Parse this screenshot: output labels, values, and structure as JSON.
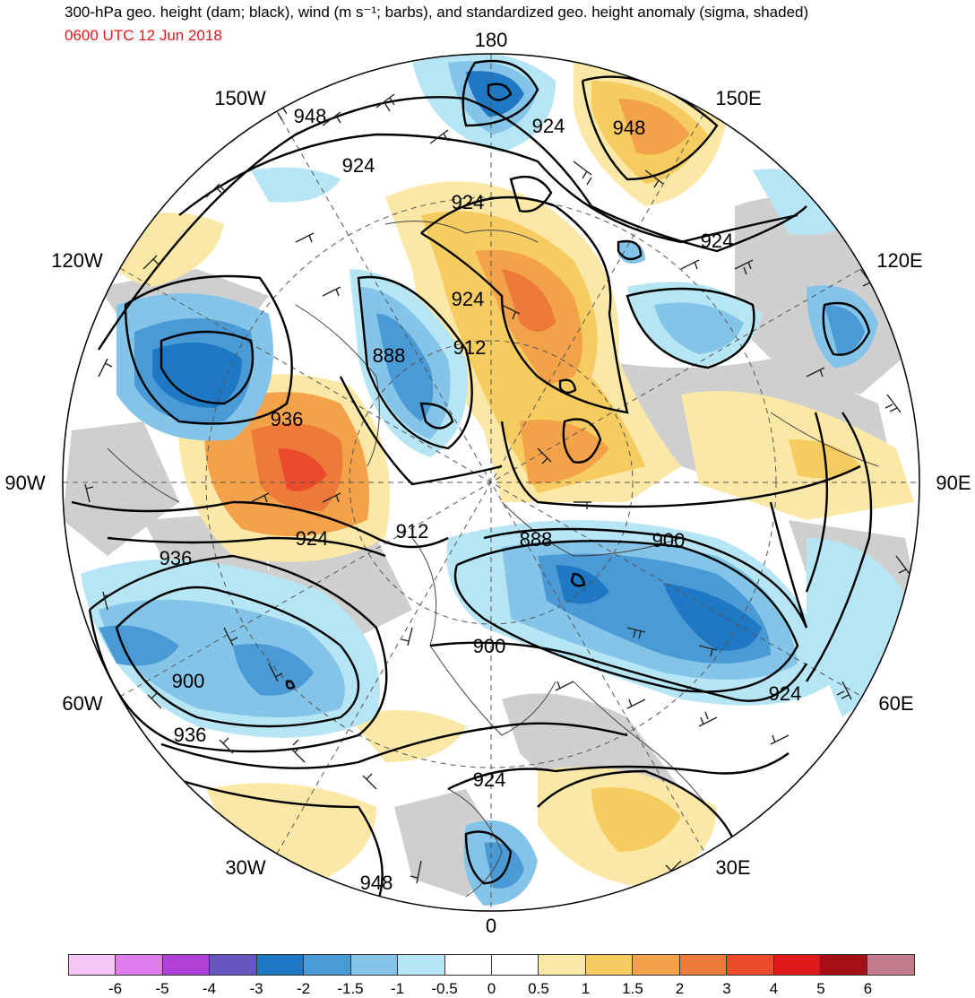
{
  "header": {
    "title": "300-hPa geo. height (dam; black), wind (m s⁻¹; barbs), and standardized geo. height anomaly (sigma, shaded)",
    "subtitle": "0600 UTC 12 Jun 2018"
  },
  "longitude_labels": {
    "n180": "180",
    "e150": "150E",
    "e120": "120E",
    "e90": "90E",
    "e60": "60E",
    "e30": "30E",
    "s0": "0",
    "w30": "30W",
    "w60": "60W",
    "w90": "90W",
    "w120": "120W",
    "w150": "150W"
  },
  "contour_labels": {
    "c948a": "948",
    "c924a": "924",
    "c924b": "924",
    "c948b": "948",
    "c924c": "924",
    "c924d": "924",
    "c912a": "912",
    "c888a": "888",
    "c936a": "936",
    "c936b": "936",
    "c924e": "924",
    "c912b": "912",
    "c888b": "888",
    "c900a": "900",
    "c900b": "900",
    "c924f": "924",
    "c900c": "900",
    "c936c": "936",
    "c924g": "924",
    "c948c": "948"
  },
  "colorbar": {
    "ticks": [
      "-6",
      "-5",
      "-4",
      "-3",
      "-2",
      "-1.5",
      "-1",
      "-0.5",
      "0",
      "0.5",
      "1",
      "1.5",
      "2",
      "3",
      "4",
      "5",
      "6"
    ],
    "colors": [
      "#f7c6f7",
      "#e07cec",
      "#b040d6",
      "#6656c0",
      "#1f78c3",
      "#4a9ad6",
      "#84c4e8",
      "#b6e6f5",
      "#ffffff",
      "#ffffff",
      "#fbe8a6",
      "#f6cc60",
      "#f3a24a",
      "#ee7a3a",
      "#ea4b2c",
      "#e0191b",
      "#a50f15",
      "#c27b8a"
    ]
  },
  "colors": {
    "land": "#cfcfcf",
    "ocean": "#ffffff",
    "contour": "#000000",
    "subtitle": "#e41a1c"
  }
}
